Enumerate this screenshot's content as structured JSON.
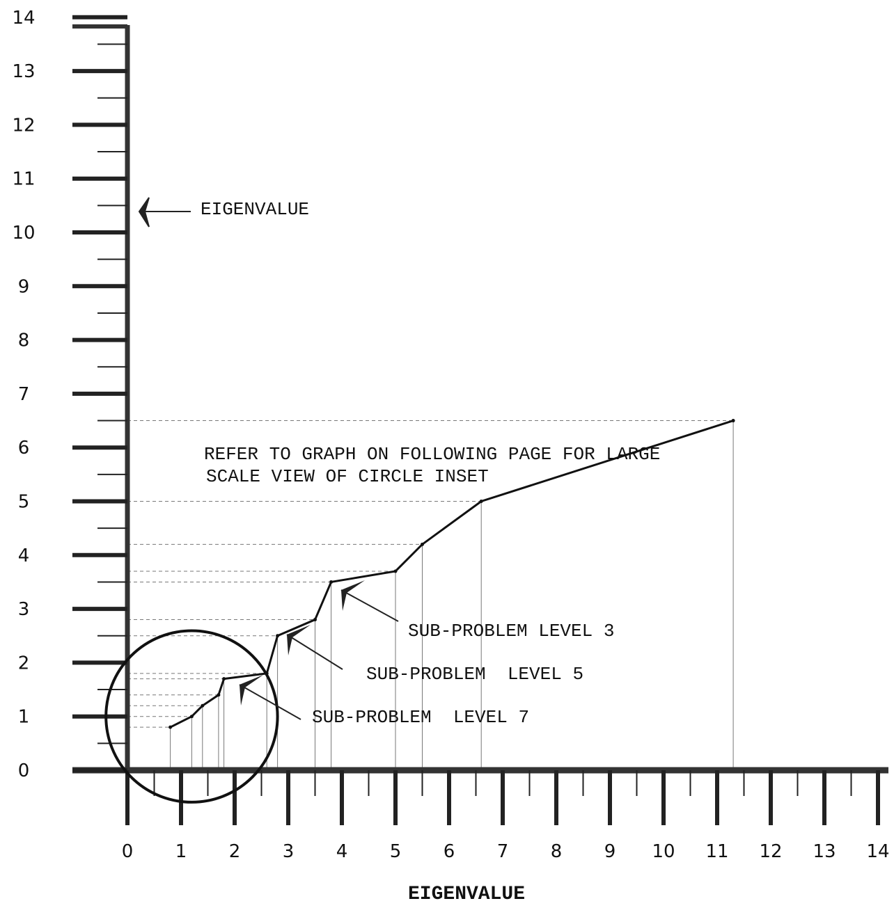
{
  "chart_data": {
    "type": "line",
    "title": "",
    "xlabel": "EIGENVALUE",
    "ylabel": "EIGENVALUE",
    "xlim": [
      0,
      14
    ],
    "ylim": [
      0,
      14
    ],
    "grid": false,
    "x_ticks": [
      0,
      1,
      2,
      3,
      4,
      5,
      6,
      7,
      8,
      9,
      10,
      11,
      12,
      13,
      14
    ],
    "y_ticks": [
      0,
      1,
      2,
      3,
      4,
      5,
      6,
      7,
      8,
      9,
      10,
      11,
      12,
      13,
      14
    ],
    "x_tick_labels": [
      "0",
      "1",
      "2",
      "3",
      "4",
      "5",
      "6",
      "7",
      "8",
      "9",
      "10",
      "11",
      "12",
      "13",
      "14"
    ],
    "y_tick_labels": [
      "0",
      "1",
      "2",
      "3",
      "4",
      "5",
      "6",
      "7",
      "8",
      "9",
      "10",
      "11",
      "12",
      "13",
      "14"
    ],
    "series": [
      {
        "x": [
          0.8,
          1.2,
          1.4,
          1.7,
          1.8,
          2.6,
          2.8,
          3.5,
          3.8,
          5.0,
          5.5,
          6.6,
          11.3
        ],
        "y": [
          0.8,
          1.0,
          1.2,
          1.4,
          1.7,
          1.8,
          2.5,
          2.8,
          3.5,
          3.7,
          4.2,
          5.0,
          6.5
        ],
        "color": "#111111"
      }
    ],
    "inset_circle": {
      "cx": 1.2,
      "cy": 1.0,
      "r": 1.6
    },
    "annotations": {
      "axis_arrow_label": "EIGENVALUE",
      "note_line1": "REFER TO GRAPH ON FOLLOWING PAGE FOR LARGE",
      "note_line2": "SCALE VIEW OF CIRCLE INSET",
      "sub3": "SUB-PROBLEM LEVEL 3",
      "sub5": "SUB-PROBLEM  LEVEL 5",
      "sub7": "SUB-PROBLEM  LEVEL 7"
    }
  }
}
